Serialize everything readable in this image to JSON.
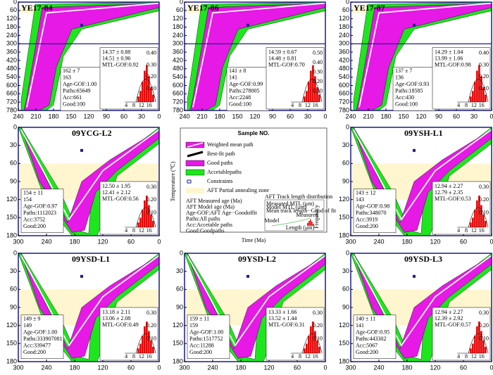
{
  "panels": [
    {
      "title": "YE17-84",
      "xticks": [
        "240",
        "210",
        "180",
        "150",
        "120",
        "90",
        "60",
        "30",
        "0"
      ],
      "yticks": [
        "0",
        "60",
        "120",
        "180",
        "240",
        "300",
        "360",
        "420",
        "480",
        "540",
        "600",
        "660",
        "720",
        "780"
      ],
      "stats": [
        "162 ± 7",
        "163",
        "Age-GOF:1.00",
        "Paths:65649",
        "Acc:661",
        "Good:100"
      ],
      "mtl": [
        "14.37 ± 0.88",
        "14.51 ± 0.96",
        "MTL-GOF:0.92"
      ],
      "hist_xticks": [
        "4",
        "8",
        "12",
        "16"
      ],
      "hist_yticks": [
        "0.40",
        "0.30",
        "0.20",
        "0.10"
      ]
    },
    {
      "title": "YE17-86",
      "xticks": [
        "240",
        "210",
        "180",
        "150",
        "120",
        "90",
        "60",
        "30",
        "0"
      ],
      "yticks": [
        "0",
        "60",
        "120",
        "180",
        "240",
        "300",
        "360",
        "420",
        "480",
        "540",
        "600",
        "660",
        "720",
        "780"
      ],
      "stats": [
        "141 ± 8",
        "141",
        "Age-GOF:0.99",
        "Paths:278005",
        "Acc:2248",
        "Good:100"
      ],
      "mtl": [
        "14.59 ± 0.67",
        "14.48 ± 0.81",
        "MTL-GOF:0.70"
      ],
      "hist_xticks": [
        "4",
        "8",
        "12",
        "16"
      ],
      "hist_yticks": [
        "0.50",
        "0.40",
        "0.30",
        "0.20",
        "0.10"
      ]
    },
    {
      "title": "YE17-87",
      "xticks": [
        "240",
        "210",
        "180",
        "150",
        "120",
        "90",
        "60",
        "30",
        "0"
      ],
      "yticks": [
        "0",
        "60",
        "120",
        "180",
        "240",
        "300",
        "360",
        "420",
        "480",
        "540",
        "600",
        "660",
        "720",
        "780"
      ],
      "stats": [
        "137 ± 7",
        "136",
        "Age-GOF:0.93",
        "Paths:18585",
        "Acc:430",
        "Good:100"
      ],
      "mtl": [
        "14.29 ± 1.04",
        "13.99 ± 1.06",
        "MTL-GOF:0.98"
      ],
      "hist_xticks": [
        "4",
        "8",
        "12",
        "16"
      ],
      "hist_yticks": [
        "0.40",
        "0.30",
        "0.20",
        "0.10"
      ]
    },
    {
      "title": "09YCG-L2",
      "xticks": [
        "300",
        "240",
        "180",
        "120",
        "60",
        "0"
      ],
      "yticks": [
        "0",
        "30",
        "60",
        "90",
        "120",
        "150",
        "180"
      ],
      "stats": [
        "154 ± 11",
        "154",
        "Age-GOF:0.97",
        "Paths:1112023",
        "Acc:3752",
        "Good:200"
      ],
      "mtl": [
        "12.50 ± 1.95",
        "12.41 ± 2.12",
        "MTL-GOF:0.56"
      ],
      "hist_xticks": [
        "4",
        "8",
        "12",
        "16"
      ],
      "hist_yticks": [
        "0.30",
        "0.20",
        "0.10"
      ]
    },
    {
      "title": "09YSH-L1",
      "xticks": [
        "300",
        "240",
        "180",
        "120",
        "60",
        "0"
      ],
      "yticks": [
        "0",
        "30",
        "60",
        "90",
        "120",
        "150",
        "180"
      ],
      "stats": [
        "143 ± 12",
        "143",
        "Age-GOF:0.98",
        "Paths:348070",
        "Acc:3919",
        "Good:200"
      ],
      "mtl": [
        "12.94 ± 2.27",
        "12.79 ± 2.35",
        "MTL-GOF:0.53"
      ],
      "hist_xticks": [
        "4",
        "8",
        "12",
        "16"
      ],
      "hist_yticks": [
        "0.30",
        "0.20",
        "0.10"
      ]
    },
    {
      "title": "09YSD-L1",
      "xticks": [
        "300",
        "240",
        "180",
        "120",
        "60",
        "0"
      ],
      "yticks": [
        "0",
        "30",
        "60",
        "90",
        "120",
        "150",
        "180"
      ],
      "stats": [
        "149 ± 9",
        "149",
        "Age-GOF:1.00",
        "Paths:333907081",
        "Acc:339477",
        "Good:200"
      ],
      "mtl": [
        "13.18 ± 2.11",
        "13.06 ± 2.08",
        "MTL-GOF:0.49"
      ],
      "hist_xticks": [
        "4",
        "8",
        "12",
        "16"
      ],
      "hist_yticks": [
        "0.30",
        "0.20",
        "0.10"
      ]
    },
    {
      "title": "09YSD-L2",
      "xticks": [
        "300",
        "240",
        "180",
        "120",
        "60",
        "0"
      ],
      "yticks": [
        "0",
        "30",
        "60",
        "90",
        "120",
        "150",
        "180"
      ],
      "stats": [
        "159 ± 11",
        "159",
        "Age-GOF:1.00",
        "Paths:1517752",
        "Acc:11288",
        "Good:200"
      ],
      "mtl": [
        "13.33 ± 1.66",
        "13.52 ± 1.44",
        "MTL-GOF:0.31"
      ],
      "hist_xticks": [
        "4",
        "8",
        "12",
        "16"
      ],
      "hist_yticks": [
        "0.30",
        "0.20",
        "0.10"
      ]
    },
    {
      "title": "09YSD-L3",
      "xticks": [
        "300",
        "240",
        "180",
        "120",
        "60",
        "0"
      ],
      "yticks": [
        "0",
        "30",
        "60",
        "90",
        "120",
        "150",
        "180"
      ],
      "stats": [
        "140 ± 11",
        "141",
        "Age-GOF:0.95",
        "Paths:443302",
        "Acc:5067",
        "Good:200"
      ],
      "mtl": [
        "12.94 ± 2.27",
        "12.39 ± 2.92",
        "MTL-GOF:0.57"
      ],
      "hist_xticks": [
        "4",
        "8",
        "12",
        "16"
      ],
      "hist_yticks": [
        "0.30",
        "0.20",
        "0.10"
      ]
    }
  ],
  "legend": {
    "title": "Sample NO.",
    "y_label": "Temperature (℃)",
    "x_label": "Time (Ma)",
    "items": [
      "Weighted mean path",
      "Best-fit path",
      "Good paths",
      "Accetablepaths",
      "Constraints",
      "AFT Partial annealing zone"
    ],
    "notes": [
      "AFT Measured age (Ma)",
      "AFT Model age (Ma)",
      "Age-GOF:AFT Age··Goodoffit",
      "Paths:All paths",
      "Acc:Accetable paths",
      "Good:Goodpaths"
    ],
    "inset_title": "AFT Track length distribution",
    "inset_notes": [
      "Measured MTL (μm)",
      "Model MTL (μm)",
      "Mean track length··Good of fit"
    ],
    "inset_labels": [
      "Frequency",
      "Model",
      "Measured",
      "Length (μm)"
    ]
  }
}
